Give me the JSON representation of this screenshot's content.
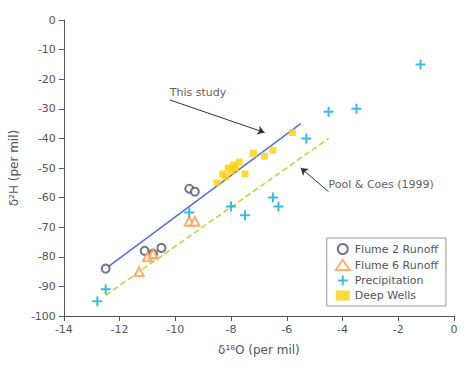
{
  "chart_data": {
    "type": "scatter",
    "xlabel": "δ¹⁸O (per mil)",
    "ylabel": "δ²H (per mil)",
    "xlim": [
      -14,
      0
    ],
    "ylim": [
      -100,
      0
    ],
    "xticks": [
      -14,
      -12,
      -10,
      -8,
      -6,
      -4,
      -2,
      0
    ],
    "yticks": [
      0,
      -10,
      -20,
      -30,
      -40,
      -50,
      -60,
      -70,
      -80,
      -90,
      -100
    ],
    "grid": false,
    "legend": "lower right",
    "series": [
      {
        "type": "line",
        "line_style": "solid",
        "x": [
          -12.5,
          -5.5
        ],
        "values": [
          -84,
          -35
        ]
      },
      {
        "type": "line",
        "line_style": "dashed",
        "x": [
          -12.5,
          -4.5
        ],
        "values": [
          -93,
          -40
        ]
      },
      {
        "name": "Flume 2 Runoff",
        "type": "scatter",
        "marker": "circle_open",
        "x": [
          -12.5,
          -11.1,
          -10.8,
          -10.5,
          -9.5,
          -9.3
        ],
        "values": [
          -84,
          -78,
          -79,
          -77,
          -57,
          -58
        ]
      },
      {
        "name": "Flume 6 Runoff",
        "type": "scatter",
        "marker": "triangle_open",
        "x": [
          -11.3,
          -11.0,
          -10.8,
          -9.5,
          -9.3
        ],
        "values": [
          -85,
          -80,
          -79,
          -68,
          -68
        ]
      },
      {
        "name": "Precipitation",
        "type": "scatter",
        "marker": "plus",
        "x": [
          -12.8,
          -12.5,
          -9.5,
          -8.0,
          -7.5,
          -6.5,
          -6.3,
          -5.3,
          -4.5,
          -3.5,
          -1.2
        ],
        "values": [
          -95,
          -91,
          -65,
          -63,
          -66,
          -60,
          -63,
          -40,
          -31,
          -30,
          -15
        ]
      },
      {
        "name": "Deep Wells",
        "type": "scatter",
        "marker": "square",
        "x": [
          -8.5,
          -8.3,
          -8.2,
          -8.1,
          -8.0,
          -7.9,
          -7.85,
          -7.7,
          -7.5,
          -7.2,
          -6.8,
          -6.5,
          -5.8
        ],
        "values": [
          -55,
          -52,
          -53,
          -50,
          -51,
          -49,
          -50,
          -48,
          -52,
          -45,
          -46,
          -44,
          -38
        ]
      }
    ],
    "annotations": [
      {
        "text": "This study",
        "xy": [
          -6.8,
          -38
        ],
        "xytext": [
          -10.2,
          -27
        ]
      },
      {
        "text": "Pool & Coes (1999)",
        "xy": [
          -5.5,
          -50
        ],
        "xytext": [
          -4.5,
          -58
        ]
      }
    ]
  }
}
